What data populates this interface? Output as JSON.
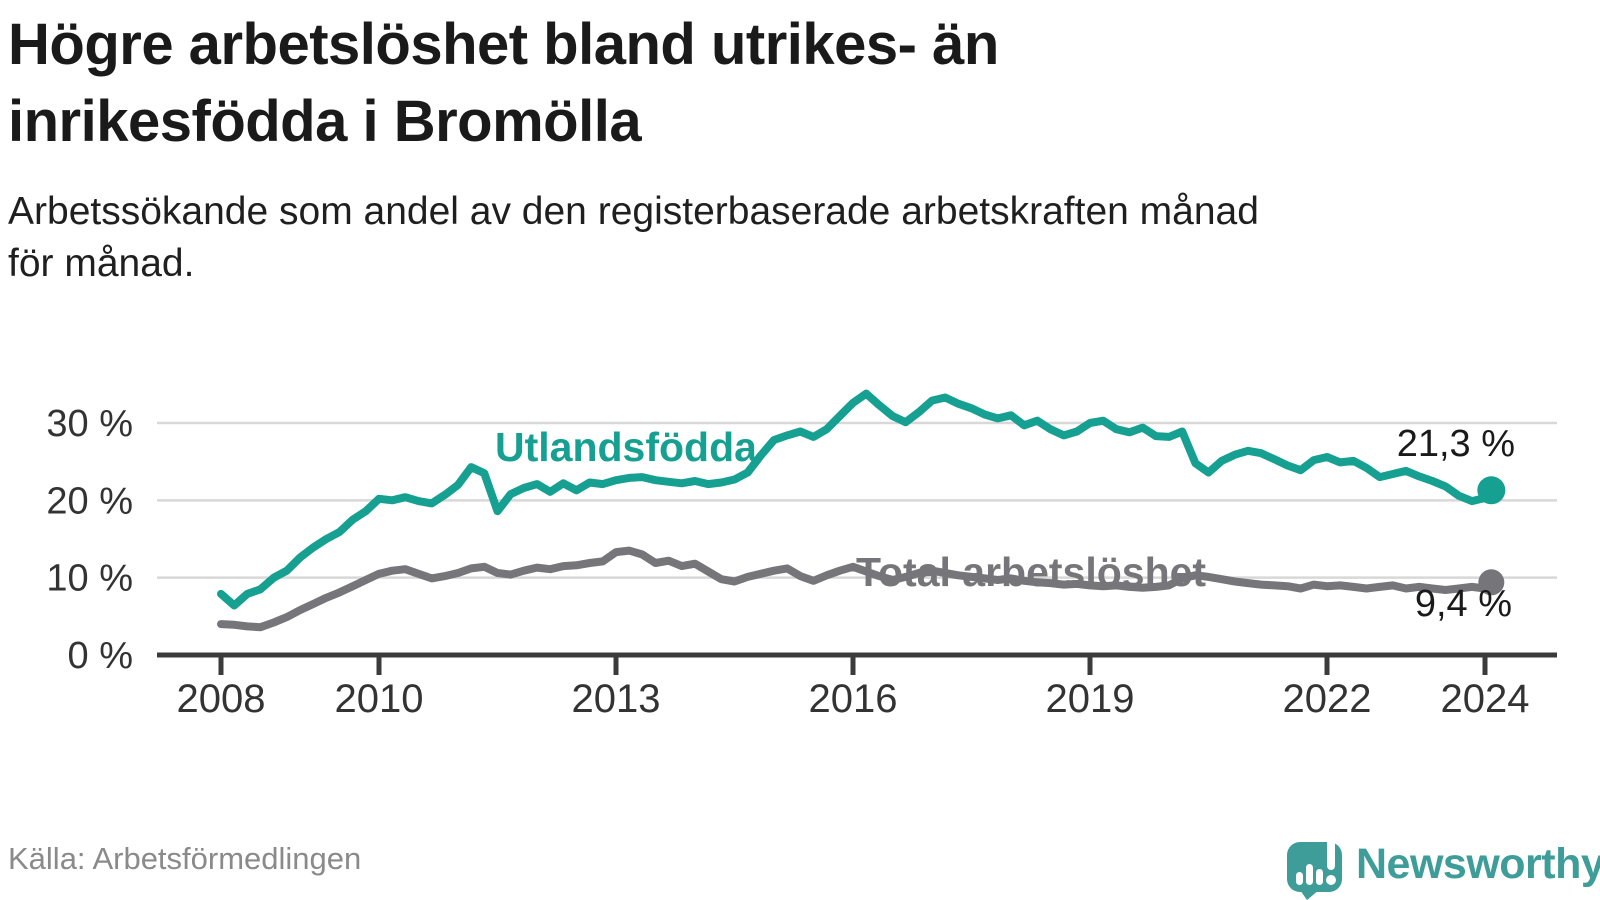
{
  "header": {
    "title_line1": "Högre arbetslöshet bland utrikes- än",
    "title_line2": "inrikesfödda i Bromölla",
    "subtitle_line1": "Arbetssökande som andel av den registerbaserade arbetskraften månad",
    "subtitle_line2": "för månad."
  },
  "footer": {
    "source": "Källa: Arbetsförmedlingen",
    "logo_text": "Newsworthy"
  },
  "colors": {
    "foreign_born": "#16A091",
    "total": "#76767A",
    "grid": "#D8D8D8",
    "axis": "#3B3B3B",
    "axis_label": "#333333",
    "annotation": "#1A1A1A",
    "logo_teal": "#3E9D99"
  },
  "chart_data": {
    "type": "line",
    "title": "Högre arbetslöshet bland utrikes- än inrikesfödda i Bromölla",
    "subtitle": "Arbetssökande som andel av den registerbaserade arbetskraften månad för månad.",
    "unit": "%",
    "grid": true,
    "legend_position": "inline-labels",
    "x_axis": {
      "range": [
        2007.2,
        2024.9
      ],
      "ticks": [
        {
          "year": 2008,
          "label": "2008"
        },
        {
          "year": 2010,
          "label": "2010"
        },
        {
          "year": 2013,
          "label": "2013"
        },
        {
          "year": 2016,
          "label": "2016"
        },
        {
          "year": 2019,
          "label": "2019"
        },
        {
          "year": 2022,
          "label": "2022"
        },
        {
          "year": 2024,
          "label": "2024"
        }
      ]
    },
    "y_axis": {
      "range": [
        0,
        36
      ],
      "gridlines": [
        10,
        20,
        30
      ],
      "ticks": [
        {
          "value": 30,
          "label": "30 %"
        },
        {
          "value": 20,
          "label": "20 %"
        },
        {
          "value": 10,
          "label": "10 %"
        },
        {
          "value": 0,
          "label": "0 %"
        }
      ]
    },
    "x_start": 2008.0,
    "x_step_years": 0.16667,
    "x_last": 2024.08,
    "series": [
      {
        "name": "Utlandsfödda",
        "color": "#16A091",
        "end_value": 21.3,
        "end_label": "21,3 %",
        "values": [
          7.9,
          6.4,
          7.9,
          8.5,
          10.0,
          10.9,
          12.6,
          13.9,
          15.0,
          15.9,
          17.5,
          18.6,
          20.2,
          20.0,
          20.4,
          19.9,
          19.6,
          20.7,
          22.0,
          24.3,
          23.5,
          18.6,
          20.8,
          21.6,
          22.1,
          21.1,
          22.2,
          21.3,
          22.3,
          22.1,
          22.6,
          22.9,
          23.0,
          22.6,
          22.4,
          22.2,
          22.5,
          22.1,
          22.3,
          22.7,
          23.6,
          25.8,
          27.8,
          28.4,
          28.9,
          28.2,
          29.2,
          30.9,
          32.6,
          33.8,
          32.3,
          30.9,
          30.1,
          31.4,
          32.9,
          33.3,
          32.5,
          31.9,
          31.1,
          30.6,
          31.0,
          29.7,
          30.3,
          29.2,
          28.4,
          28.9,
          30.0,
          30.3,
          29.2,
          28.8,
          29.4,
          28.3,
          28.2,
          28.9,
          24.8,
          23.6,
          25.1,
          25.9,
          26.4,
          26.1,
          25.3,
          24.5,
          23.9,
          25.2,
          25.6,
          24.9,
          25.1,
          24.2,
          23.0,
          23.4,
          23.8,
          23.1,
          22.5,
          21.8,
          20.6,
          19.9,
          20.3,
          21.3
        ]
      },
      {
        "name": "Total arbetslöshet",
        "color": "#76767A",
        "end_value": 9.4,
        "end_label": "9,4 %",
        "values": [
          4.0,
          3.9,
          3.7,
          3.6,
          4.2,
          4.9,
          5.8,
          6.6,
          7.4,
          8.1,
          8.9,
          9.7,
          10.5,
          10.9,
          11.1,
          10.5,
          9.9,
          10.2,
          10.6,
          11.2,
          11.4,
          10.6,
          10.4,
          10.9,
          11.3,
          11.1,
          11.5,
          11.6,
          11.9,
          12.1,
          13.3,
          13.5,
          13.0,
          11.9,
          12.2,
          11.5,
          11.8,
          10.8,
          9.8,
          9.5,
          10.1,
          10.5,
          10.9,
          11.2,
          10.2,
          9.6,
          10.3,
          10.9,
          11.4,
          10.8,
          10.2,
          9.7,
          10.1,
          10.6,
          10.9,
          10.6,
          10.3,
          10.1,
          9.9,
          9.7,
          9.9,
          9.6,
          9.4,
          9.3,
          9.1,
          9.2,
          9.0,
          8.9,
          9.0,
          8.8,
          8.7,
          8.8,
          9.0,
          9.9,
          10.3,
          10.1,
          9.8,
          9.5,
          9.3,
          9.1,
          9.0,
          8.9,
          8.6,
          9.1,
          8.9,
          9.0,
          8.8,
          8.6,
          8.8,
          9.0,
          8.6,
          8.8,
          8.6,
          8.4,
          8.6,
          8.8,
          8.6,
          9.4
        ]
      }
    ]
  }
}
